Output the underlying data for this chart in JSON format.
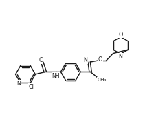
{
  "bg_color": "#ffffff",
  "line_color": "#1a1a1a",
  "lw": 1.05,
  "fs": 5.8,
  "figsize": [
    2.08,
    1.7
  ],
  "dpi": 100,
  "xlim": [
    0,
    10.4
  ],
  "ylim": [
    0,
    8.5
  ]
}
